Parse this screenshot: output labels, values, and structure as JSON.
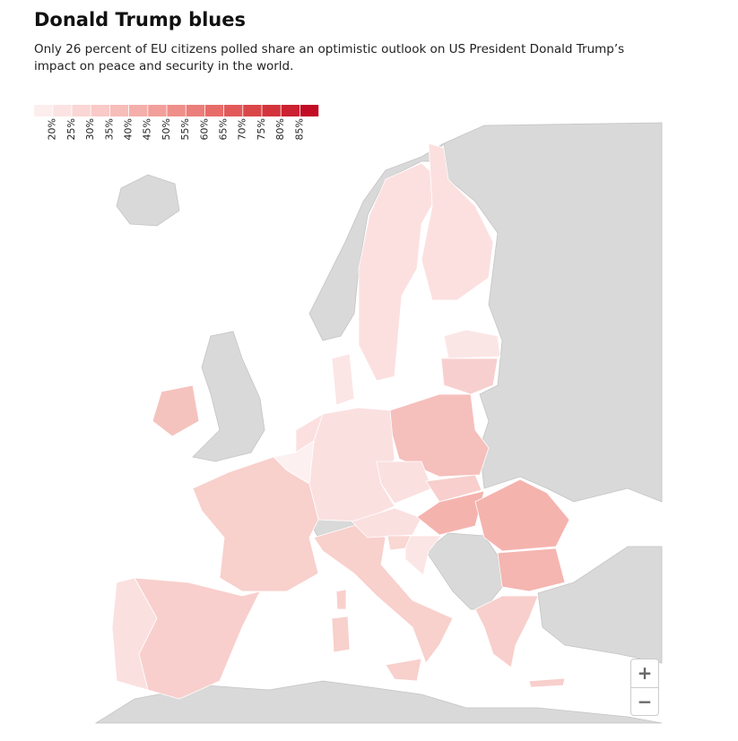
{
  "title": "Donald Trump blues",
  "subtitle": "Only 26 percent of EU citizens polled share an optimistic outlook on US President Donald Trump’s impact on peace and security in the world.",
  "legend": {
    "colors": [
      "#fdeeee",
      "#fce3e3",
      "#fad6d4",
      "#f9cac7",
      "#f7bdb9",
      "#f5afab",
      "#f29f9b",
      "#ef8f8a",
      "#eb7e7a",
      "#e76c69",
      "#e15a59",
      "#da4749",
      "#d3343b",
      "#cb2130",
      "#c20c24"
    ],
    "labels": [
      "20%",
      "25%",
      "30%",
      "35%",
      "40%",
      "45%",
      "50%",
      "55%",
      "60%",
      "65%",
      "70%",
      "75%",
      "80%",
      "85%"
    ]
  },
  "zoom": {
    "in": "+",
    "out": "−"
  }
}
